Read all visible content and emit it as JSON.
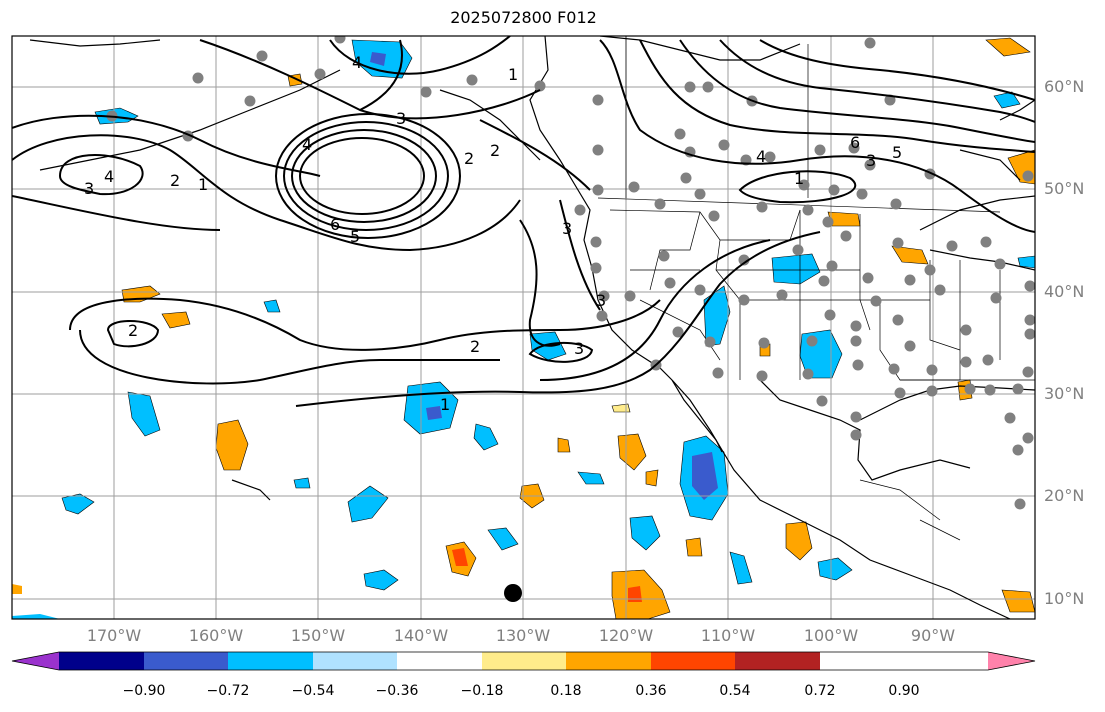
{
  "title": "2025072800 F012",
  "lat_labels": [
    "60°N",
    "50°N",
    "40°N",
    "30°N",
    "20°N",
    "10°N"
  ],
  "lon_labels": [
    "170°W",
    "160°W",
    "150°W",
    "140°W",
    "130°W",
    "120°W",
    "110°W",
    "100°W",
    "90°W"
  ],
  "colorbar": {
    "ticks": [
      "−0.90",
      "−0.72",
      "−0.54",
      "−0.36",
      "−0.18",
      "0.18",
      "0.36",
      "0.54",
      "0.72",
      "0.90"
    ],
    "colors": [
      "#9a32cd",
      "#00008b",
      "#3a5bcd",
      "#00bfff",
      "#b0e2ff",
      "#ffffff",
      "#ffec8b",
      "#ffa500",
      "#ff4500",
      "#b22222",
      "#ff82ab"
    ]
  },
  "contour_labels": [
    "4",
    "1",
    "3",
    "4",
    "2",
    "1",
    "2",
    "4",
    "3",
    "6",
    "5",
    "6",
    "4",
    "3",
    "2",
    "1",
    "5",
    "2",
    "3",
    "2",
    "3",
    "1",
    "3"
  ],
  "chart_data": {
    "type": "map",
    "lat_range": [
      "8°N",
      "65°N"
    ],
    "lon_range": [
      "180°W",
      "80°W"
    ],
    "grid": true,
    "field_levels": [
      -0.9,
      -0.72,
      -0.54,
      -0.36,
      -0.18,
      0.18,
      0.36,
      0.54,
      0.72,
      0.9
    ]
  }
}
